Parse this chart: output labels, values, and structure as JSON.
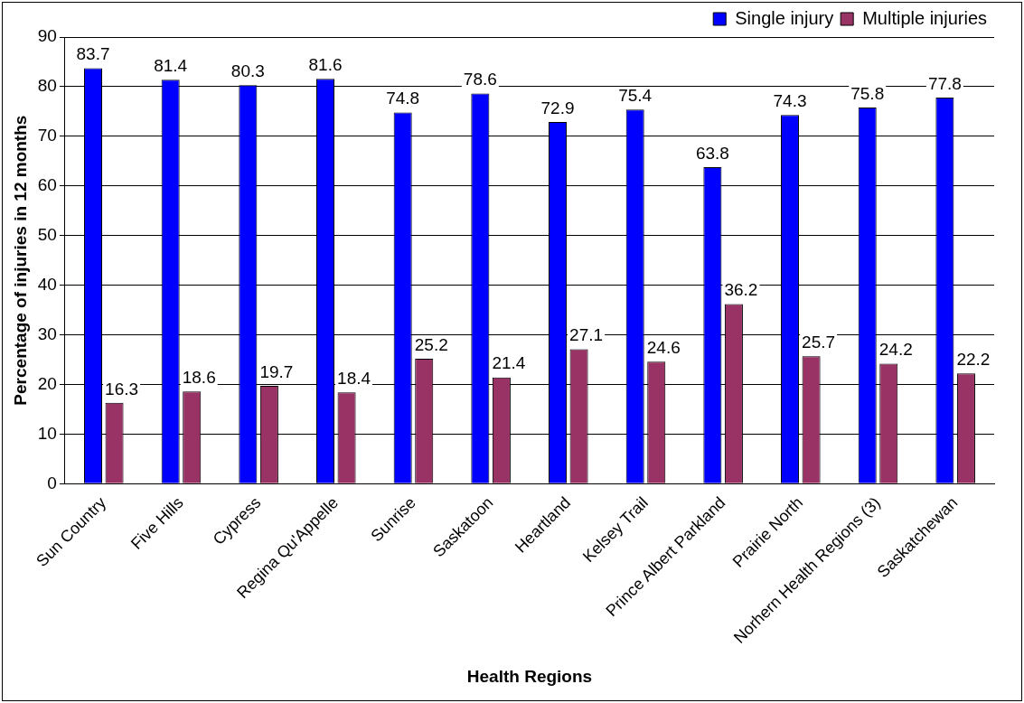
{
  "chart_data": {
    "type": "bar",
    "xlabel": "Health Regions",
    "ylabel": "Percentage of injuries in 12 months",
    "categories": [
      "Sun Country",
      "Five Hills",
      "Cypress",
      "Regina Qu'Appelle",
      "Sunrise",
      "Saskatoon",
      "Heartland",
      "Kelsey Trail",
      "Prince Albert Parkland",
      "Prairie North",
      "Norhern Health Regions (3)",
      "Saskatchewan"
    ],
    "series": [
      {
        "name": "Single injury",
        "color": "#0000ff",
        "values": [
          83.7,
          81.4,
          80.3,
          81.6,
          74.8,
          78.6,
          72.9,
          75.4,
          63.8,
          74.3,
          75.8,
          77.8
        ]
      },
      {
        "name": "Multiple injuries",
        "color": "#993366",
        "values": [
          16.3,
          18.6,
          19.7,
          18.4,
          25.2,
          21.4,
          27.1,
          24.6,
          36.2,
          25.7,
          24.2,
          22.2
        ]
      }
    ],
    "ylim": [
      0,
      90
    ],
    "yticks": [
      0,
      10,
      20,
      30,
      40,
      50,
      60,
      70,
      80,
      90
    ],
    "grid": "y",
    "legend": "top",
    "data_labels": true
  }
}
